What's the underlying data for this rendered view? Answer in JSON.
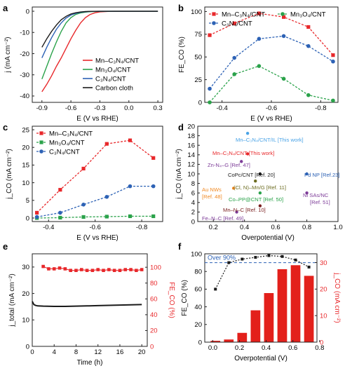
{
  "colors": {
    "red": "#e8282b",
    "green": "#2aa24a",
    "blue": "#2d62b5",
    "black": "#1a1a1a",
    "brown": "#7a1f1f",
    "orange": "#f08a24",
    "purple": "#7d3c98",
    "olive": "#6b6b1f",
    "skyblue": "#4aa3e6",
    "darkred_bar": "#e3201b"
  },
  "chart_data": [
    {
      "panel": "a",
      "type": "line",
      "xlabel": "E (V vs RHE)",
      "ylabel": "j (mA cm⁻²)",
      "xlim": [
        -1.0,
        0.35
      ],
      "ylim": [
        -43,
        2
      ],
      "xticks": [
        "-0.9",
        "-0.6",
        "-0.3",
        "0.0",
        "0.3"
      ],
      "yticks": [
        "0",
        "-10",
        "-20",
        "-30",
        "-40"
      ],
      "legend_position": "lower-right",
      "series": [
        {
          "name": "Mn–C₃N₄/CNT",
          "color": "red",
          "x": [
            -0.9,
            -0.85,
            -0.8,
            -0.75,
            -0.7,
            -0.65,
            -0.6,
            -0.55,
            -0.5,
            -0.45,
            -0.4,
            -0.35,
            -0.3,
            -0.25,
            -0.2,
            -0.15,
            -0.1,
            -0.05,
            0.0,
            0.3
          ],
          "y": [
            -38,
            -34.5,
            -30.5,
            -26,
            -22,
            -17.5,
            -13,
            -9,
            -5.5,
            -3,
            -1.5,
            -0.7,
            -0.3,
            -0.15,
            -0.05,
            0,
            0,
            0,
            0,
            0
          ]
        },
        {
          "name": "Mn₃O₄/CNT",
          "color": "green",
          "x": [
            -0.9,
            -0.85,
            -0.8,
            -0.75,
            -0.7,
            -0.65,
            -0.6,
            -0.55,
            -0.5,
            -0.45,
            -0.4,
            -0.3,
            -0.2,
            0.0,
            0.3
          ],
          "y": [
            -32,
            -26,
            -20,
            -14.5,
            -9.5,
            -5.5,
            -3,
            -1.5,
            -0.8,
            -0.4,
            -0.2,
            -0.05,
            0,
            0,
            0
          ]
        },
        {
          "name": "C₃N₄/CNT",
          "color": "blue",
          "x": [
            -0.9,
            -0.85,
            -0.8,
            -0.75,
            -0.7,
            -0.65,
            -0.6,
            -0.55,
            -0.5,
            -0.45,
            -0.4,
            -0.3,
            -0.2,
            0.0,
            0.3
          ],
          "y": [
            -22,
            -17,
            -12.5,
            -8.5,
            -5.5,
            -3.2,
            -1.8,
            -1,
            -0.5,
            -0.25,
            -0.1,
            0,
            0,
            0,
            0
          ]
        },
        {
          "name": "Carbon cloth",
          "color": "black",
          "x": [
            -0.9,
            -0.85,
            -0.8,
            -0.75,
            -0.7,
            -0.65,
            -0.6,
            -0.55,
            -0.5,
            -0.45,
            -0.4,
            -0.3,
            -0.2,
            0.0,
            0.3
          ],
          "y": [
            -17,
            -13,
            -9.5,
            -6.5,
            -4,
            -2.4,
            -1.3,
            -0.7,
            -0.35,
            -0.15,
            -0.05,
            0,
            0,
            0,
            0
          ]
        }
      ]
    },
    {
      "panel": "b",
      "type": "line",
      "xlabel": "E (V vs RHE)",
      "ylabel": "FE_CO (%)",
      "xlim": [
        -0.33,
        -0.87
      ],
      "ylim": [
        0,
        105
      ],
      "xticks": [
        "-0.4",
        "-0.6",
        "-0.8"
      ],
      "yticks": [
        "0",
        "25",
        "50",
        "75",
        "100"
      ],
      "legend_position": "top",
      "x": [
        -0.35,
        -0.45,
        -0.55,
        -0.65,
        -0.75,
        -0.85
      ],
      "series": [
        {
          "name": "Mn–C₃N₄/CNT",
          "color": "red",
          "values": [
            74,
            87,
            98,
            94,
            83,
            52
          ]
        },
        {
          "name": "Mn₃O₄/CNT",
          "color": "green",
          "values": [
            0,
            31,
            40,
            26,
            8,
            2
          ]
        },
        {
          "name": "C₃N₄/CNT",
          "color": "blue",
          "values": [
            15,
            49,
            70,
            73,
            62,
            45
          ]
        }
      ]
    },
    {
      "panel": "c",
      "type": "line",
      "xlabel": "E (V vs RHE)",
      "ylabel": "j_CO (mA cm⁻²)",
      "xlim": [
        -0.33,
        -0.89
      ],
      "ylim": [
        -1,
        26
      ],
      "xticks": [
        "-0.4",
        "-0.6",
        "-0.8"
      ],
      "yticks": [
        "0",
        "5",
        "10",
        "15",
        "20",
        "25"
      ],
      "legend_position": "top-left",
      "x": [
        -0.35,
        -0.45,
        -0.55,
        -0.65,
        -0.75,
        -0.85
      ],
      "series": [
        {
          "name": "Mn–C₃N₄/CNT",
          "color": "red",
          "values": [
            1.5,
            8,
            14,
            21,
            22,
            17
          ]
        },
        {
          "name": "Mn₃O₄/CNT",
          "color": "green",
          "values": [
            0,
            0.1,
            0.3,
            0.4,
            0.5,
            0.5
          ]
        },
        {
          "name": "C₃N₄/CNT",
          "color": "blue",
          "values": [
            0.3,
            1.5,
            3.8,
            6,
            9,
            9
          ]
        }
      ]
    },
    {
      "panel": "d",
      "type": "scatter",
      "xlabel": "Overpotential (V)",
      "ylabel": "j_CO (mA cm⁻²)",
      "xlim": [
        0.1,
        1.0
      ],
      "ylim": [
        0,
        20
      ],
      "xticks": [
        "0.2",
        "0.4",
        "0.6",
        "0.8",
        "1.0"
      ],
      "yticks": [
        "0",
        "2",
        "4",
        "6",
        "8",
        "10",
        "12",
        "14",
        "16",
        "18",
        "20"
      ],
      "points": [
        {
          "label": "Mn–C₃N₄/CNT/IL [This work]",
          "x": 0.42,
          "y": 18.5,
          "color": "skyblue"
        },
        {
          "label": "Mn–C₃N₄/CNT [This work]",
          "x": 0.42,
          "y": 14.2,
          "color": "red"
        },
        {
          "label": "Zn-N₄–G [Ref. 47]",
          "x": 0.38,
          "y": 12.6,
          "color": "purple"
        },
        {
          "label": "CoPc/CNT [Ref. 20]",
          "x": 0.5,
          "y": 10.0,
          "color": "black"
        },
        {
          "label": "Pd NP [Ref.23]",
          "x": 0.8,
          "y": 10.0,
          "color": "blue"
        },
        {
          "label": "(Cl, N)–Mn/G [Ref. 11]",
          "x": 0.47,
          "y": 8.5,
          "color": "olive"
        },
        {
          "label": "Au NWs [Ref. 48]",
          "x": 0.33,
          "y": 7.0,
          "color": "orange"
        },
        {
          "label": "Co–PP@CNT [Ref. 50]",
          "x": 0.5,
          "y": 6.0,
          "color": "green"
        },
        {
          "label": "Ni SAs/NC [Ref. 51]",
          "x": 0.8,
          "y": 6.0,
          "color": "purple"
        },
        {
          "label": "Mn–N–C [Ref. 10]",
          "x": 0.5,
          "y": 3.3,
          "color": "brown"
        },
        {
          "label": "Fe–N–C [Ref. 49]",
          "x": 0.35,
          "y": 2.0,
          "color": "purple"
        }
      ]
    },
    {
      "panel": "e",
      "type": "line",
      "xlabel": "Time (h)",
      "ylabel": "j_total (mA cm⁻²)",
      "ylabel_right": "FE_CO (%)",
      "xlim": [
        0,
        21
      ],
      "ylim": [
        0,
        35
      ],
      "ylim_right": [
        0,
        117
      ],
      "xticks": [
        "0",
        "4",
        "8",
        "12",
        "16",
        "20"
      ],
      "yticks": [
        "0",
        "10",
        "20",
        "30"
      ],
      "yticks_right": [
        "0",
        "20",
        "40",
        "60",
        "80",
        "100"
      ],
      "series": [
        {
          "name": "j_total",
          "axis": "left",
          "color": "black",
          "x": [
            0,
            0.3,
            0.6,
            1,
            2,
            4,
            6,
            8,
            10,
            12,
            14,
            16,
            18,
            20
          ],
          "y": [
            17,
            15.8,
            15.5,
            15.3,
            15.2,
            15.1,
            15.1,
            15.2,
            15.3,
            15.4,
            15.5,
            15.6,
            15.7,
            15.8
          ]
        },
        {
          "name": "FE_CO",
          "axis": "right",
          "color": "red",
          "x": [
            2,
            3,
            4,
            5,
            6,
            7,
            8,
            9,
            10,
            11,
            12,
            13,
            14,
            15,
            16,
            17,
            18,
            19,
            20
          ],
          "y": [
            101,
            98,
            98,
            99,
            98,
            96,
            96,
            97,
            96,
            96,
            97,
            96,
            97,
            96,
            96,
            97,
            97,
            96,
            97
          ]
        }
      ]
    },
    {
      "panel": "f",
      "type": "bar",
      "xlabel": "Overpotential (V)",
      "ylabel": "FE_CO (%)",
      "ylabel_right": "j_CO (mA cm⁻²)",
      "xlim": [
        -0.06,
        0.78
      ],
      "ylim": [
        0,
        100
      ],
      "ylim_right": [
        0,
        33.3
      ],
      "xticks": [
        "0.0",
        "0.2",
        "0.4",
        "0.6",
        "0.8"
      ],
      "yticks": [
        "0",
        "20",
        "40",
        "60",
        "80",
        "100"
      ],
      "yticks_right": [
        "0",
        "10",
        "20",
        "30"
      ],
      "annotation": "Over 90%",
      "reference_line": 90,
      "x": [
        0.02,
        0.12,
        0.22,
        0.32,
        0.42,
        0.52,
        0.62,
        0.72
      ],
      "fe_values": [
        60,
        90,
        94,
        96,
        98,
        97,
        93,
        85
      ],
      "jco_values": [
        0.5,
        1.0,
        3.5,
        12,
        18.5,
        27.5,
        29,
        25
      ]
    }
  ]
}
